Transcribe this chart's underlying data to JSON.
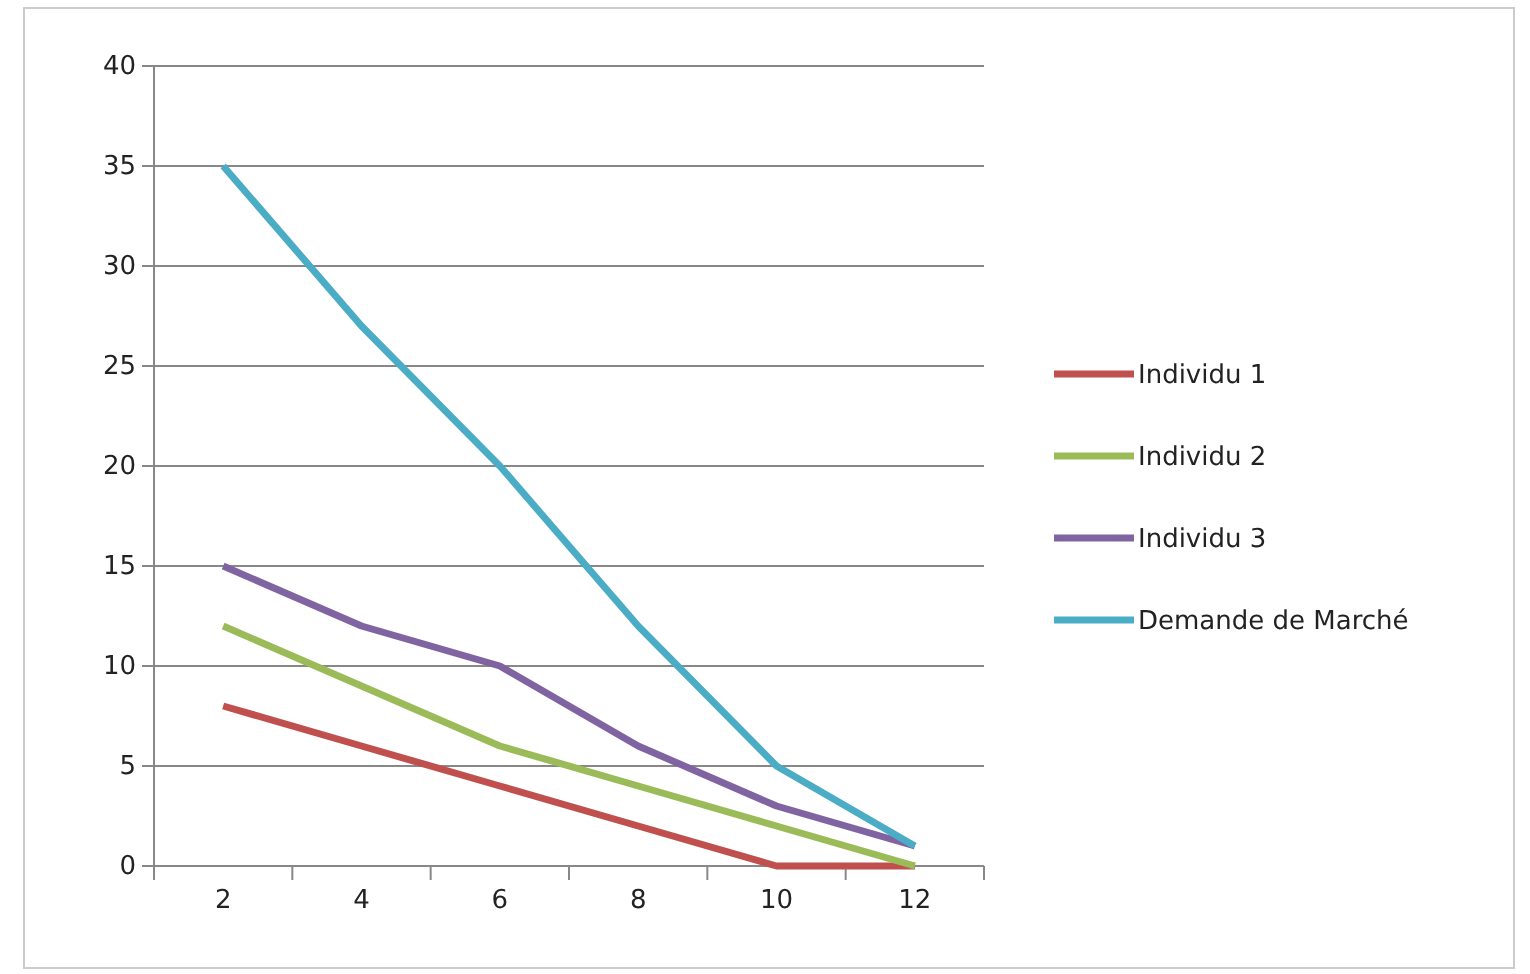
{
  "chart_data": {
    "type": "line",
    "categories": [
      "2",
      "4",
      "6",
      "8",
      "10",
      "12"
    ],
    "series": [
      {
        "name": "Individu 1",
        "color": "#c0504d",
        "values": [
          8,
          6,
          4,
          2,
          0,
          0
        ]
      },
      {
        "name": "Individu 2",
        "color": "#9bbb59",
        "values": [
          12,
          9,
          6,
          4,
          2,
          0
        ]
      },
      {
        "name": "Individu 3",
        "color": "#8064a2",
        "values": [
          15,
          12,
          10,
          6,
          3,
          1
        ]
      },
      {
        "name": "Demande de Marché",
        "color": "#4bacc6",
        "values": [
          35,
          27,
          20,
          12,
          5,
          1
        ]
      }
    ],
    "ylim": [
      0,
      40
    ],
    "yticks": [
      0,
      5,
      10,
      15,
      20,
      25,
      30,
      35,
      40
    ],
    "grid": "y",
    "legend": "right",
    "marker": "none",
    "line_style": "solid"
  }
}
